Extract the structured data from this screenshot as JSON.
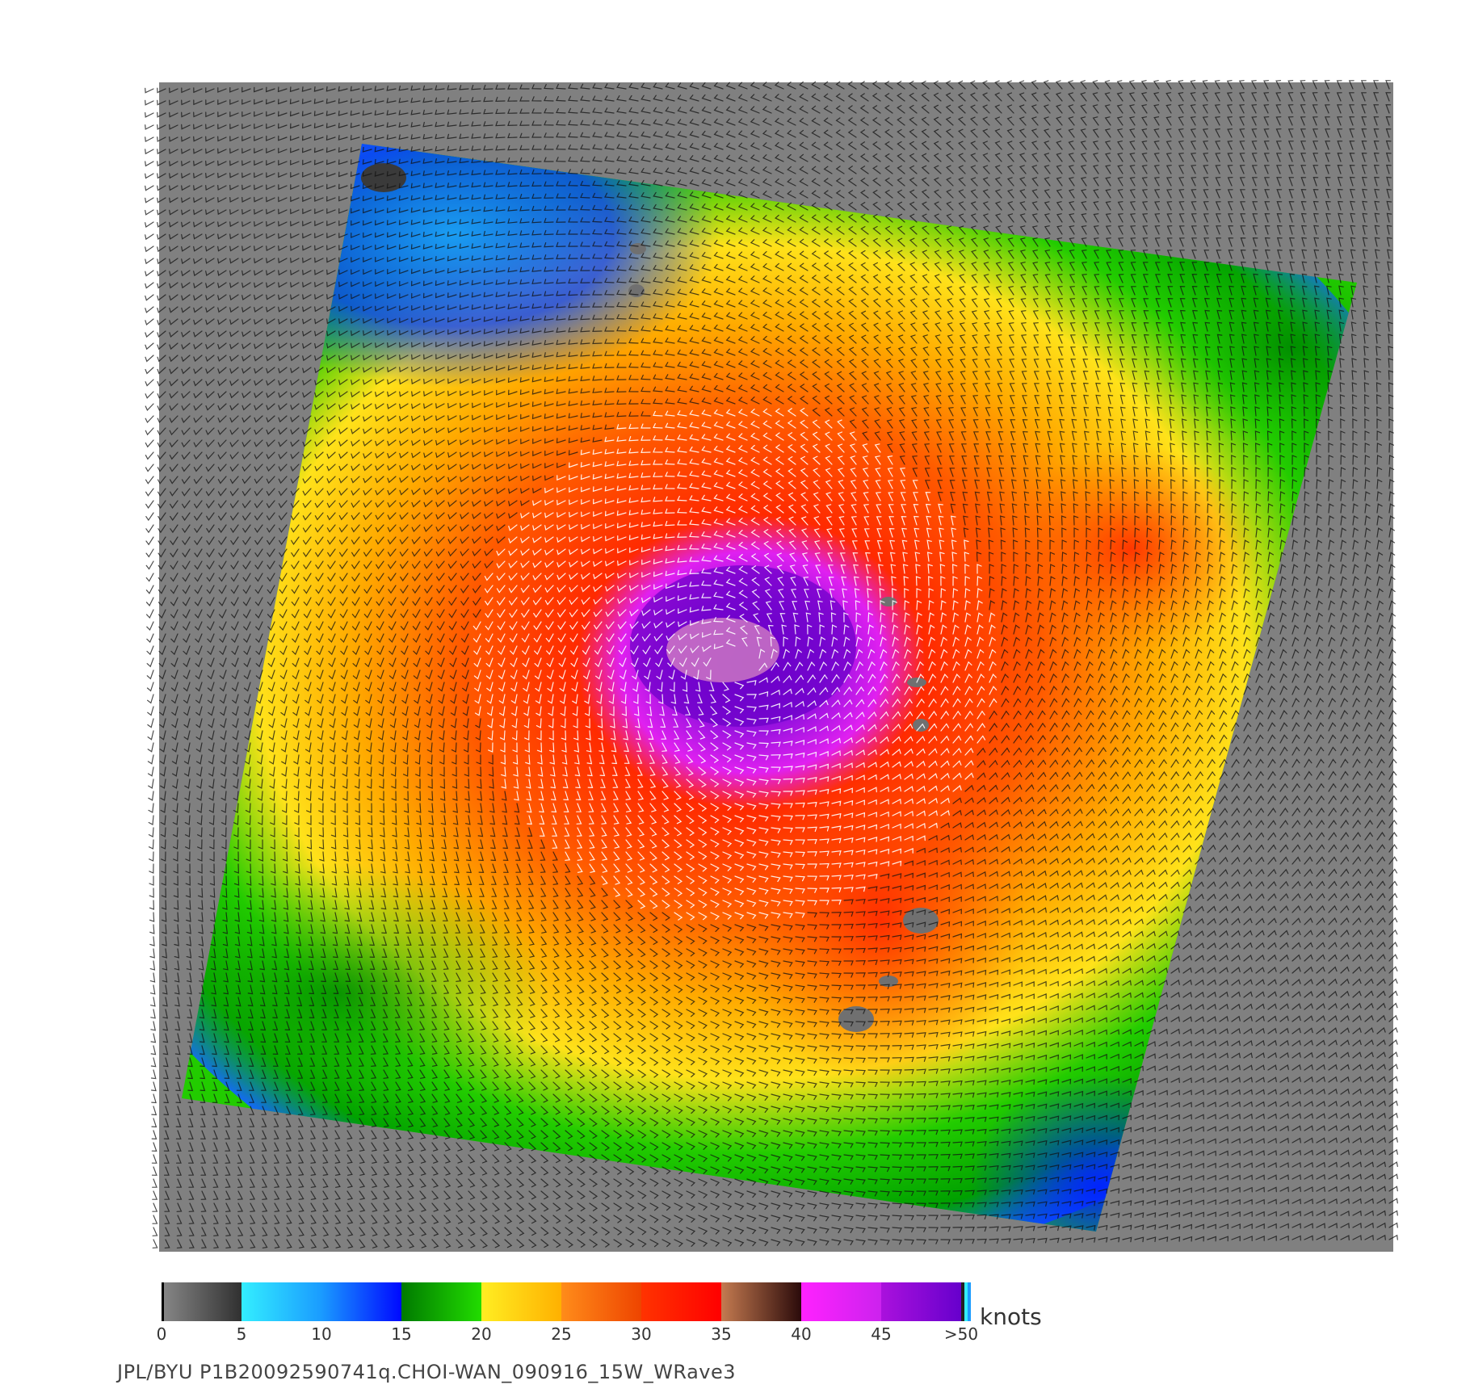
{
  "colorbar": {
    "units": "knots",
    "tick_labels": [
      "0",
      "5",
      "10",
      "15",
      "20",
      "25",
      "30",
      "35",
      "40",
      "45",
      ">50"
    ],
    "segments": [
      {
        "from": 0,
        "to": 5,
        "start": "#888888",
        "end": "#303030"
      },
      {
        "from": 5,
        "to": 10,
        "start": "#33eeff",
        "end": "#1a9bff"
      },
      {
        "from": 10,
        "to": 15,
        "start": "#1a9bff",
        "end": "#0008ff"
      },
      {
        "from": 15,
        "to": 20,
        "start": "#007a00",
        "end": "#22dd00"
      },
      {
        "from": 20,
        "to": 25,
        "start": "#ffee22",
        "end": "#ffb000"
      },
      {
        "from": 25,
        "to": 30,
        "start": "#ff8c1a",
        "end": "#ee4400"
      },
      {
        "from": 30,
        "to": 35,
        "start": "#ff3300",
        "end": "#ff0000"
      },
      {
        "from": 35,
        "to": 40,
        "start": "#c47a50",
        "end": "#2a0a0a"
      },
      {
        "from": 40,
        "to": 45,
        "start": "#ff22ff",
        "end": "#cc22ee"
      },
      {
        "from": 45,
        "to": 50,
        "start": "#aa11dd",
        "end": "#6600cc"
      }
    ]
  },
  "caption": "JPL/BYU  P1B20092590741q.CHOI-WAN_090916_15W_WRave3",
  "colors": {
    "background_land": "#808080",
    "eye": "#ffb6c1",
    "wind_barb_dark": "#111111",
    "wind_barb_light": "#ffffff"
  }
}
